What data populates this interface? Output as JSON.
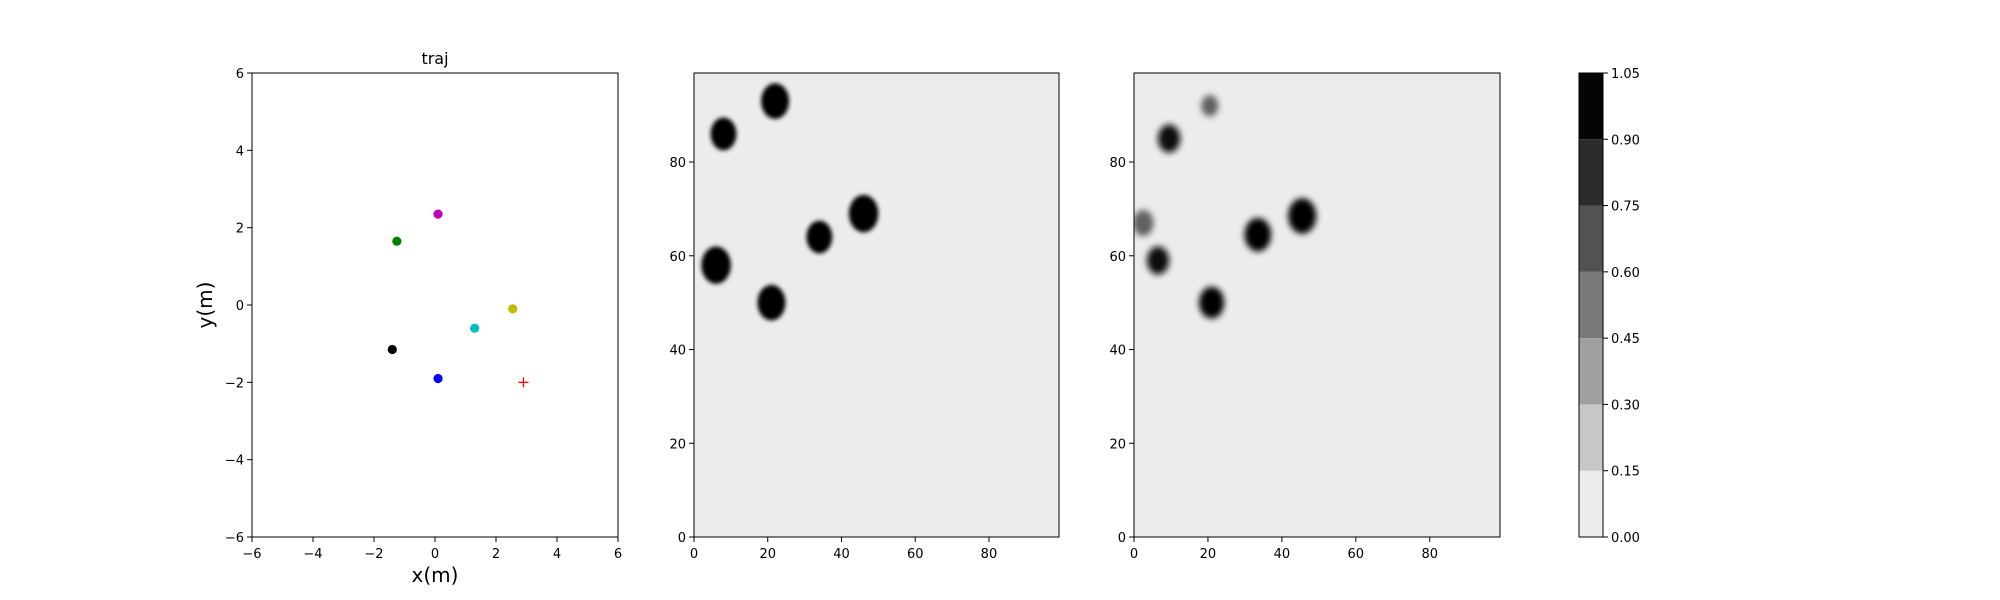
{
  "chart_data": [
    {
      "type": "scatter",
      "title": "traj",
      "xlabel": "x(m)",
      "ylabel": "y(m)",
      "xlim": [
        -6,
        6
      ],
      "ylim": [
        -6,
        6
      ],
      "xticks": [
        -6,
        -4,
        -2,
        0,
        2,
        4,
        6
      ],
      "yticks": [
        -6,
        -4,
        -2,
        0,
        2,
        4,
        6
      ],
      "grid": false,
      "points": [
        {
          "x": 0.1,
          "y": 2.35,
          "color": "#bf00bf",
          "marker": "dot"
        },
        {
          "x": -1.25,
          "y": 1.65,
          "color": "#008000",
          "marker": "dot"
        },
        {
          "x": 2.55,
          "y": -0.1,
          "color": "#bfbf00",
          "marker": "dot"
        },
        {
          "x": 1.3,
          "y": -0.6,
          "color": "#00bfbf",
          "marker": "dot"
        },
        {
          "x": -1.4,
          "y": -1.15,
          "color": "#000000",
          "marker": "dot"
        },
        {
          "x": 0.1,
          "y": -1.9,
          "color": "#0000ff",
          "marker": "dot"
        },
        {
          "x": 2.9,
          "y": -2.0,
          "color": "#ff0000",
          "marker": "plus"
        }
      ]
    },
    {
      "type": "heatmap",
      "xlim": [
        0,
        99
      ],
      "ylim": [
        0,
        99
      ],
      "xticks": [
        0,
        20,
        40,
        60,
        80
      ],
      "yticks": [
        0,
        20,
        40,
        60,
        80
      ],
      "background_value": 0.05,
      "blobs": [
        {
          "x": 22,
          "y": 93,
          "r": 3.8,
          "value": 1.0
        },
        {
          "x": 8,
          "y": 86,
          "r": 3.5,
          "value": 1.0
        },
        {
          "x": 46,
          "y": 69,
          "r": 4.0,
          "value": 1.0
        },
        {
          "x": 34,
          "y": 64,
          "r": 3.5,
          "value": 1.0
        },
        {
          "x": 6,
          "y": 58,
          "r": 4.0,
          "value": 1.0
        },
        {
          "x": 21,
          "y": 50,
          "r": 3.8,
          "value": 1.0
        }
      ]
    },
    {
      "type": "heatmap",
      "xlim": [
        0,
        99
      ],
      "ylim": [
        0,
        99
      ],
      "xticks": [
        0,
        20,
        40,
        60,
        80
      ],
      "yticks": [
        0,
        20,
        40,
        60,
        80
      ],
      "background_value": 0.05,
      "blobs": [
        {
          "x": 20.5,
          "y": 92,
          "r": 2.3,
          "value": 0.6
        },
        {
          "x": 9.5,
          "y": 85,
          "r": 3.0,
          "value": 0.95
        },
        {
          "x": 45.5,
          "y": 68.5,
          "r": 3.8,
          "value": 1.0
        },
        {
          "x": 33.5,
          "y": 64.5,
          "r": 3.6,
          "value": 1.0
        },
        {
          "x": 2.5,
          "y": 67,
          "r": 2.8,
          "value": 0.6
        },
        {
          "x": 6.5,
          "y": 59,
          "r": 3.0,
          "value": 0.95
        },
        {
          "x": 21,
          "y": 50,
          "r": 3.4,
          "value": 1.0
        }
      ]
    }
  ],
  "colorbar": {
    "levels": [
      0.0,
      0.15,
      0.3,
      0.45,
      0.6,
      0.75,
      0.9,
      1.05
    ],
    "tick_labels": [
      "0.00",
      "0.15",
      "0.30",
      "0.45",
      "0.60",
      "0.75",
      "0.90",
      "1.05"
    ],
    "colors": [
      "#ececec",
      "#c7c7c7",
      "#a0a0a0",
      "#797979",
      "#525252",
      "#2b2b2b",
      "#050505"
    ]
  }
}
